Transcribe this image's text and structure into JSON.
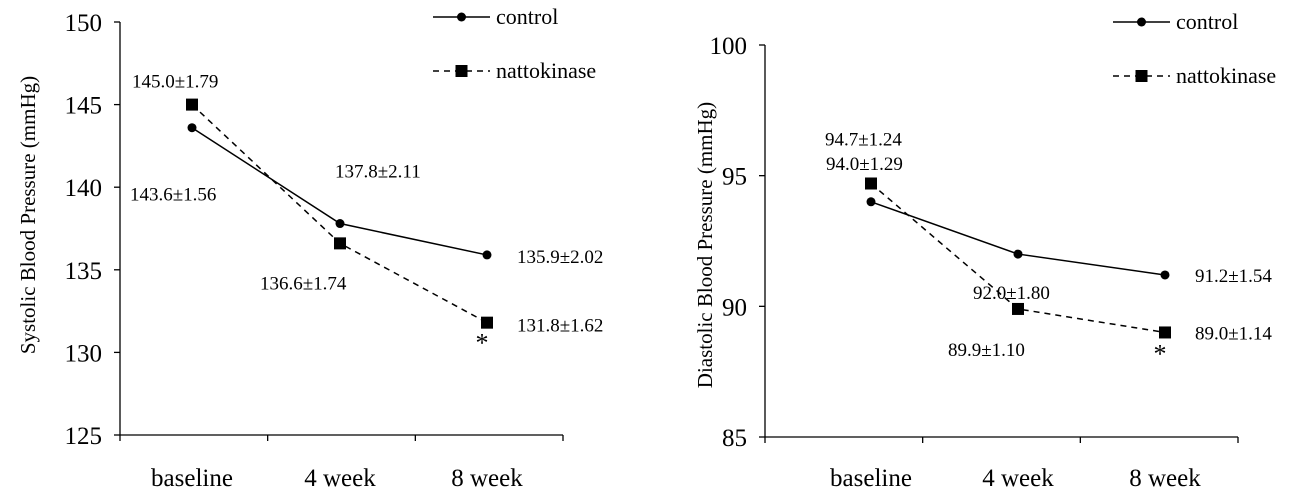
{
  "chart_data": [
    {
      "type": "line",
      "title": "",
      "xlabel": "",
      "ylabel": "Systolic Blood Pressure (mmHg)",
      "categories": [
        "baseline",
        "4 week",
        "8 week"
      ],
      "ylim": [
        125,
        150
      ],
      "yticks": [
        125,
        130,
        135,
        140,
        145,
        150
      ],
      "legend": "top-right",
      "grid": false,
      "series": [
        {
          "name": "control",
          "style": "solid",
          "marker": "circle",
          "values": [
            143.6,
            137.8,
            135.9
          ],
          "labels": [
            "143.6±1.56",
            "137.8±2.11",
            "135.9±2.02"
          ]
        },
        {
          "name": "nattokinase",
          "style": "dashed",
          "marker": "square",
          "values": [
            145.0,
            136.6,
            131.8
          ],
          "labels": [
            "145.0±1.79",
            "136.6±1.74",
            "131.8±1.62"
          ]
        }
      ],
      "annotations": [
        {
          "text": "*",
          "category": "8 week"
        }
      ]
    },
    {
      "type": "line",
      "title": "",
      "xlabel": "",
      "ylabel": "Diastolic Blood Pressure (mmHg)",
      "categories": [
        "baseline",
        "4 week",
        "8 week"
      ],
      "ylim": [
        85,
        100
      ],
      "yticks": [
        85,
        90,
        95,
        100
      ],
      "legend": "top-right",
      "grid": false,
      "series": [
        {
          "name": "control",
          "style": "solid",
          "marker": "circle",
          "values": [
            94.0,
            92.0,
            91.2
          ],
          "labels": [
            "94.0±1.29",
            "92.0±1.80",
            "91.2±1.54"
          ]
        },
        {
          "name": "nattokinase",
          "style": "dashed",
          "marker": "square",
          "values": [
            94.7,
            89.9,
            89.0
          ],
          "labels": [
            "94.7±1.24",
            "89.9±1.10",
            "89.0±1.14"
          ]
        }
      ],
      "annotations": [
        {
          "text": "*",
          "category": "8 week"
        }
      ]
    }
  ]
}
